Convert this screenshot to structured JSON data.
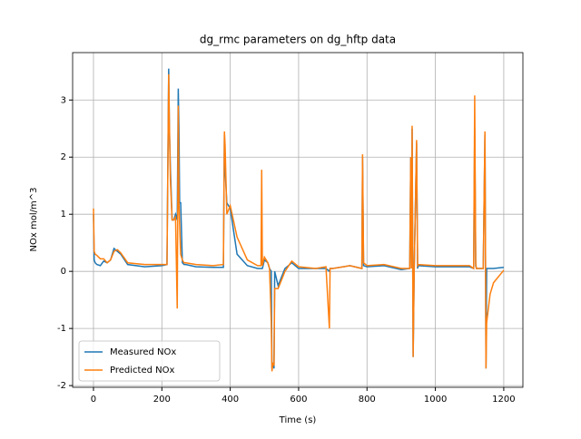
{
  "chart_data": {
    "type": "line",
    "title": "dg_rmc parameters on dg_hftp data",
    "x_label": "Time (s)",
    "y_label": "NOx mol/m^3",
    "x": [
      0,
      2,
      5,
      10,
      20,
      30,
      40,
      50,
      60,
      70,
      80,
      100,
      150,
      200,
      215,
      220,
      222,
      225,
      230,
      235,
      240,
      245,
      248,
      250,
      252,
      255,
      260,
      265,
      270,
      300,
      350,
      380,
      383,
      385,
      390,
      400,
      420,
      450,
      480,
      490,
      492,
      494,
      500,
      510,
      515,
      520,
      522,
      525,
      528,
      530,
      540,
      560,
      580,
      600,
      650,
      680,
      690,
      692,
      700,
      750,
      785,
      787,
      790,
      800,
      850,
      900,
      925,
      928,
      930,
      932,
      935,
      938,
      945,
      948,
      950,
      1000,
      1050,
      1100,
      1112,
      1115,
      1118,
      1120,
      1140,
      1145,
      1148,
      1150,
      1160,
      1170,
      1200
    ],
    "series": [
      {
        "name": "Measured NOx",
        "color": "#1f77b4",
        "values": [
          1.0,
          0.2,
          0.15,
          0.12,
          0.1,
          0.18,
          0.15,
          0.2,
          0.4,
          0.35,
          0.3,
          0.12,
          0.08,
          0.1,
          0.12,
          3.55,
          2.5,
          1.8,
          0.9,
          0.9,
          1.0,
          0.9,
          3.2,
          2.5,
          1.2,
          1.2,
          0.15,
          0.12,
          0.12,
          0.08,
          0.07,
          0.07,
          2.4,
          1.8,
          1.2,
          1.1,
          0.3,
          0.1,
          0.05,
          0.05,
          0.05,
          0.05,
          0.2,
          0.15,
          0.05,
          0.0,
          -1.7,
          -1.6,
          -1.7,
          0.0,
          -0.25,
          0.05,
          0.15,
          0.05,
          0.05,
          0.05,
          0.0,
          0.05,
          0.05,
          0.1,
          0.05,
          2.0,
          0.1,
          0.08,
          0.1,
          0.03,
          0.05,
          2.0,
          0.05,
          2.5,
          -1.5,
          0.0,
          2.25,
          0.05,
          0.1,
          0.08,
          0.08,
          0.08,
          0.05,
          2.5,
          0.1,
          0.05,
          0.05,
          2.4,
          -1.7,
          0.05,
          0.05,
          0.05,
          0.07
        ]
      },
      {
        "name": "Predicted NOx",
        "color": "#ff7f0e",
        "values": [
          1.1,
          0.35,
          0.3,
          0.28,
          0.22,
          0.22,
          0.15,
          0.2,
          0.35,
          0.38,
          0.32,
          0.15,
          0.12,
          0.12,
          0.12,
          3.45,
          2.6,
          1.6,
          0.9,
          0.9,
          0.95,
          -0.65,
          2.9,
          1.2,
          0.8,
          0.3,
          0.2,
          0.15,
          0.15,
          0.12,
          0.1,
          0.12,
          2.45,
          2.2,
          1.0,
          1.15,
          0.6,
          0.2,
          0.1,
          0.1,
          1.78,
          0.1,
          0.25,
          0.15,
          0.05,
          -0.9,
          -1.75,
          -1.6,
          -1.65,
          -0.3,
          -0.3,
          0.0,
          0.18,
          0.08,
          0.05,
          0.08,
          -1.0,
          0.05,
          0.05,
          0.1,
          0.05,
          2.05,
          0.15,
          0.1,
          0.12,
          0.05,
          0.05,
          2.0,
          0.05,
          2.55,
          -1.5,
          0.0,
          2.3,
          0.1,
          0.12,
          0.1,
          0.1,
          0.1,
          0.05,
          3.08,
          0.15,
          0.05,
          0.05,
          2.45,
          -1.7,
          -0.9,
          -0.4,
          -0.2,
          0.02
        ]
      }
    ],
    "xlim": [
      -61,
      1256
    ],
    "ylim": [
      -2.03,
      3.83
    ],
    "xticks": [
      0,
      200,
      400,
      600,
      800,
      1000,
      1200
    ],
    "yticks": [
      -2,
      -1,
      0,
      1,
      2,
      3
    ],
    "grid": true,
    "legend": "lower left"
  }
}
